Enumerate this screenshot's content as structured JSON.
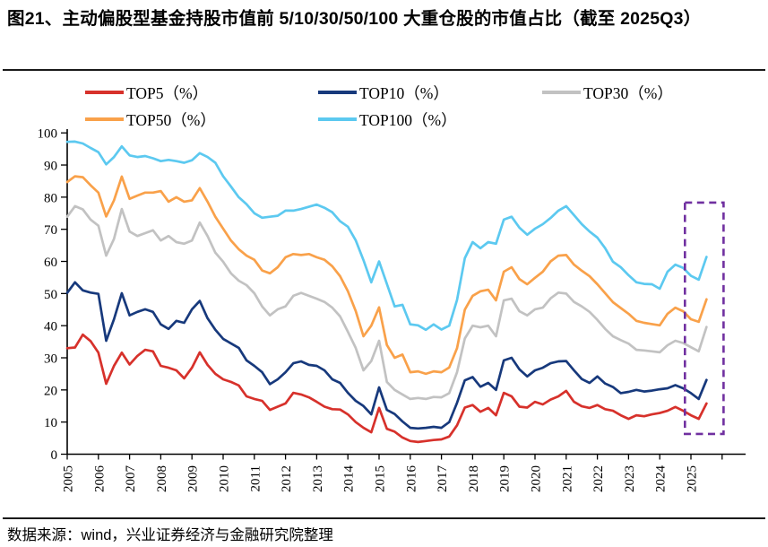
{
  "title": "图21、主动偏股型基金持股市值前 5/10/30/50/100 大重仓股的市值占比（截至 2025Q3）",
  "source": "数据来源：wind，兴业证券经济与金融研究院整理",
  "colors": {
    "top5": "#d7312b",
    "top10": "#17397c",
    "top30": "#c2c2c2",
    "top50": "#f9a14a",
    "top100": "#5cc9f0",
    "highlight_box": "#7030a0",
    "axis": "#000000"
  },
  "chart_data": {
    "type": "line",
    "title": "主动偏股型基金持股市值前 5/10/30/50/100 大重仓股的市值占比",
    "x_unit": "quarter",
    "x_start": "2005Q1",
    "x_end": "2025Q3",
    "x_tick_labels": [
      "2005",
      "2006",
      "2007",
      "2008",
      "2009",
      "2010",
      "2011",
      "2012",
      "2013",
      "2014",
      "2015",
      "2016",
      "2017",
      "2018",
      "2019",
      "2020",
      "2021",
      "2022",
      "2023",
      "2024",
      "2025"
    ],
    "ylim": [
      0,
      100
    ],
    "y_ticks": [
      0,
      10,
      20,
      30,
      40,
      50,
      60,
      70,
      80,
      90,
      100
    ],
    "grid": false,
    "legend_position": "top",
    "highlight_box": {
      "from": "2024Q4",
      "to": "2025Q3",
      "note": "dashed box highlighting latest quarters"
    },
    "series": [
      {
        "name": "TOP5（%）",
        "color_key": "top5",
        "values": [
          33,
          33.2,
          37.2,
          35.2,
          31.6,
          21.9,
          27.5,
          31.6,
          27.9,
          30.6,
          32.5,
          32,
          27.5,
          26.9,
          26.1,
          23.6,
          26.9,
          31.7,
          27.8,
          25,
          23.3,
          22.5,
          21.4,
          18,
          17.2,
          16.6,
          13.8,
          14.8,
          15.8,
          19.1,
          18.6,
          17.7,
          16.3,
          14.8,
          14,
          13.9,
          12.4,
          10,
          8.2,
          6.8,
          14.4,
          7.9,
          7,
          5.2,
          4.1,
          3.8,
          4.1,
          4.4,
          4.6,
          5.5,
          9,
          14.5,
          15.3,
          13.2,
          14.4,
          12.1,
          19.1,
          18,
          14.8,
          14.5,
          16.3,
          15.5,
          17,
          18,
          19.7,
          16.3,
          14.9,
          14.4,
          15.3,
          14,
          13.5,
          12.1,
          11,
          12.1,
          11.8,
          12.4,
          12.8,
          13.5,
          14.7,
          13.5,
          12.1,
          11,
          15.8
        ]
      },
      {
        "name": "TOP10（%）",
        "color_key": "top10",
        "values": [
          50.2,
          53.5,
          51,
          50.3,
          49.9,
          35.3,
          42,
          50.1,
          43.2,
          44.3,
          45.1,
          44.3,
          40.4,
          39,
          41.5,
          40.9,
          45.1,
          47.7,
          42.3,
          38.7,
          35.9,
          34.5,
          33.1,
          29.2,
          27.5,
          25.5,
          21.8,
          23.3,
          25.5,
          28.3,
          28.9,
          27.8,
          27.5,
          26.1,
          23.3,
          22.2,
          19.1,
          16.6,
          15,
          12.4,
          20.8,
          13.8,
          12.5,
          10.2,
          8.2,
          8,
          8.2,
          8.5,
          8.2,
          10,
          16,
          23,
          24,
          21,
          22.2,
          20,
          29.2,
          30,
          26.4,
          24.2,
          26.1,
          26.9,
          28.3,
          28.9,
          29,
          26.1,
          23.4,
          22.2,
          24.2,
          22,
          20.9,
          19,
          19.4,
          20,
          19.5,
          19.8,
          20.2,
          20.5,
          21.5,
          20.5,
          19,
          17.2,
          23.1
        ]
      },
      {
        "name": "TOP30（%）",
        "color_key": "top30",
        "values": [
          73.9,
          77.2,
          76.2,
          73,
          71.1,
          61.8,
          67,
          76.3,
          69.3,
          67.9,
          68.8,
          69.7,
          66.5,
          67.9,
          66,
          65.5,
          66.5,
          72.1,
          67.9,
          62.7,
          59.9,
          56.3,
          54,
          52.6,
          50.1,
          46,
          43.2,
          45.1,
          46,
          49.3,
          50.2,
          49.3,
          48.4,
          47.4,
          45.6,
          42.9,
          38.1,
          33.1,
          26.1,
          29,
          35.3,
          22.5,
          20,
          18.6,
          17.2,
          17.5,
          17.2,
          17.8,
          17.7,
          19,
          25.5,
          36,
          40,
          39.5,
          40,
          36.7,
          47.9,
          48.4,
          44.5,
          43.2,
          45.1,
          45.6,
          48.5,
          50.3,
          50,
          47.4,
          46,
          44.3,
          41.8,
          39,
          36.7,
          35.5,
          34.4,
          32.5,
          32.3,
          32,
          31.7,
          33.9,
          35.3,
          34.6,
          33.3,
          32,
          39.6
        ]
      },
      {
        "name": "TOP50（%）",
        "color_key": "top50",
        "values": [
          84.7,
          86.5,
          86.2,
          83.7,
          81.4,
          74,
          79,
          86.4,
          79.5,
          80.5,
          81.4,
          81.4,
          81.9,
          78.6,
          80,
          78.6,
          79,
          82.8,
          78.6,
          73.9,
          70.2,
          66.5,
          63.8,
          61.8,
          60.5,
          57.2,
          56.3,
          58.2,
          61.3,
          62.3,
          62,
          62.3,
          61.3,
          60.5,
          58.5,
          55.4,
          50.7,
          44.6,
          36.7,
          40,
          45.7,
          34,
          30,
          31,
          25.5,
          25.8,
          25,
          25.8,
          25.5,
          27,
          33,
          45,
          49.3,
          50.7,
          51.2,
          47.9,
          56.8,
          58.2,
          54.5,
          52.9,
          54.9,
          56.8,
          60,
          61.8,
          62,
          59,
          57.1,
          55.4,
          52.9,
          50.1,
          47.3,
          45.5,
          43.7,
          41.5,
          40.9,
          40.5,
          40.1,
          43.7,
          45.6,
          44.5,
          42,
          41.2,
          48.2
        ]
      },
      {
        "name": "TOP100（%）",
        "color_key": "top100",
        "values": [
          97.2,
          97.3,
          96.7,
          95.3,
          94,
          90.2,
          92.5,
          95.8,
          93,
          92.5,
          92.8,
          92.1,
          91.2,
          91.6,
          91.2,
          90.7,
          91.5,
          93.7,
          92.5,
          90.7,
          86.5,
          83.3,
          80,
          77.8,
          75,
          73.6,
          73.9,
          74.2,
          75.8,
          75.8,
          76.3,
          77,
          77.7,
          76.7,
          75.3,
          72.5,
          70.8,
          66.6,
          60.4,
          53.5,
          60,
          53,
          46,
          46.5,
          40.4,
          40.1,
          38.7,
          40.4,
          38.8,
          40,
          48,
          61,
          66,
          64.1,
          66,
          65.5,
          73,
          73.9,
          70.5,
          68.3,
          70.2,
          71.6,
          73.5,
          75.8,
          77.2,
          74.4,
          71.6,
          69.3,
          67.4,
          64.1,
          59.9,
          58.2,
          55.7,
          53.5,
          53,
          52.9,
          51.5,
          56.8,
          59,
          58,
          55.5,
          54.3,
          61.4
        ]
      }
    ]
  },
  "legend": {
    "items": [
      {
        "key": "top5",
        "label": "TOP5（%）"
      },
      {
        "key": "top10",
        "label": "TOP10（%）"
      },
      {
        "key": "top30",
        "label": "TOP30（%）"
      },
      {
        "key": "top50",
        "label": "TOP50（%）"
      },
      {
        "key": "top100",
        "label": "TOP100（%）"
      }
    ]
  }
}
